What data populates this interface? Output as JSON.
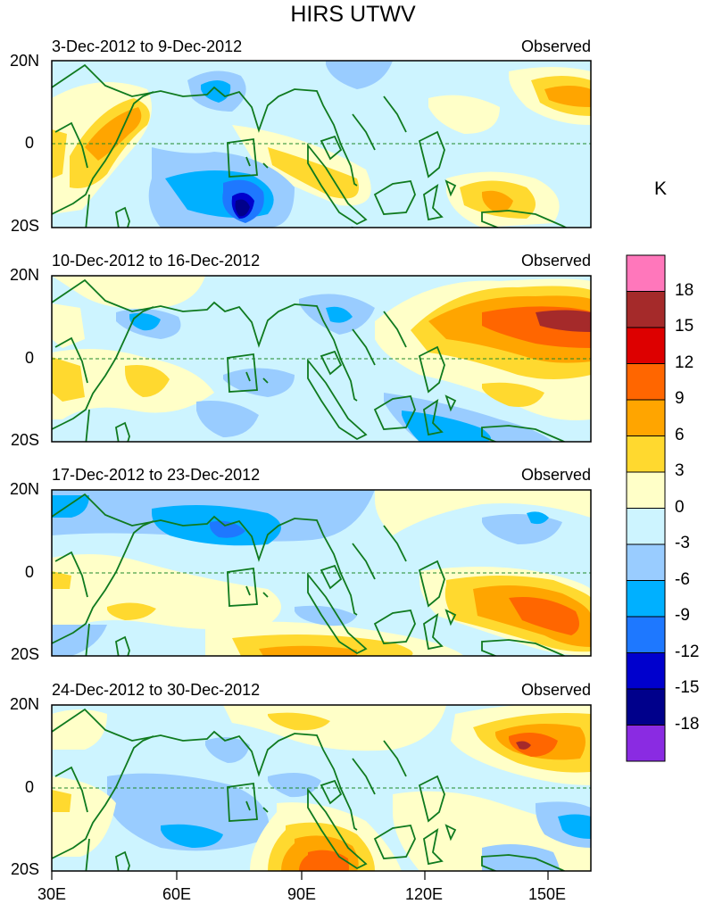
{
  "title": "HIRS UTWV",
  "unit": "K",
  "panels": [
    {
      "label": "3-Dec-2012 to 9-Dec-2012",
      "tag": "Observed"
    },
    {
      "label": "10-Dec-2012 to 16-Dec-2012",
      "tag": "Observed"
    },
    {
      "label": "17-Dec-2012 to 23-Dec-2012",
      "tag": "Observed"
    },
    {
      "label": "24-Dec-2012 to 30-Dec-2012",
      "tag": "Observed"
    }
  ],
  "y_ticks": [
    "20N",
    "0",
    "20S"
  ],
  "x_ticks": [
    "30E",
    "60E",
    "90E",
    "120E",
    "150E"
  ],
  "colorbar": {
    "labels": [
      "18",
      "15",
      "12",
      "9",
      "6",
      "3",
      "0",
      "-3",
      "-6",
      "-9",
      "-12",
      "-15",
      "-18"
    ],
    "colors": [
      "#ff77bb",
      "#a52a2a",
      "#dd0000",
      "#ff6600",
      "#ffa500",
      "#ffd92f",
      "#ffffc8",
      "#cdf4ff",
      "#99ccff",
      "#00b0ff",
      "#1e78ff",
      "#0000cd",
      "#00008b",
      "#8a2be2"
    ]
  }
}
